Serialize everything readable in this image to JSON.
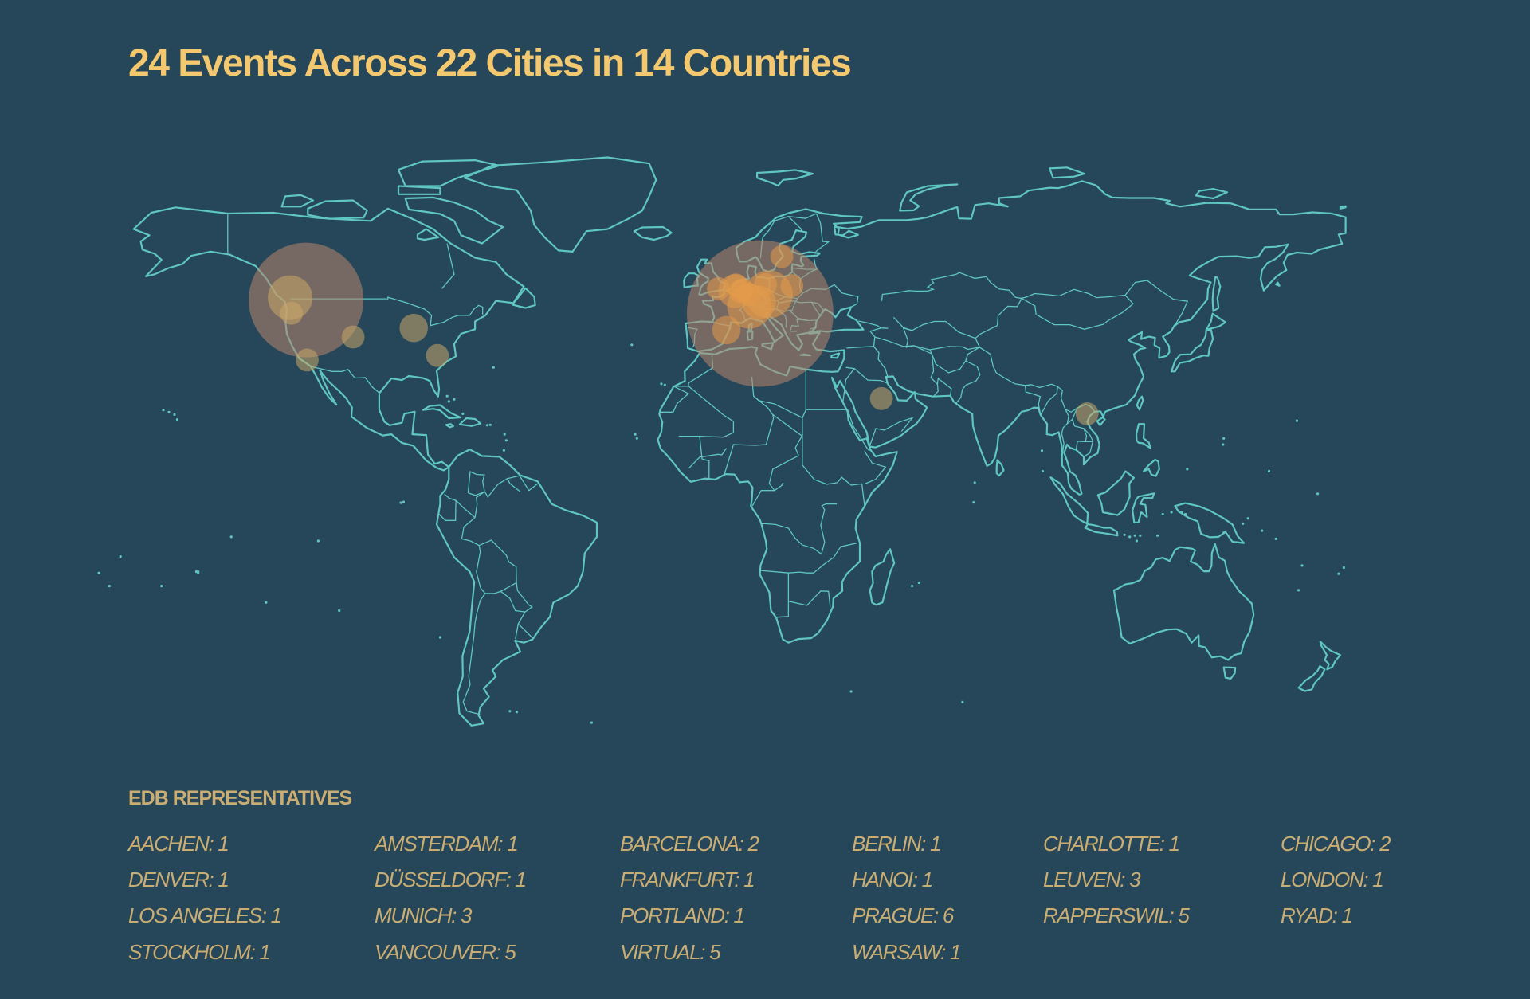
{
  "title": "24 Events Across 22 Cities in 14 Countries",
  "colors": {
    "background": "#264659",
    "land": "#5fc6c0",
    "title": "#f3c86e",
    "text": "#c9ad73",
    "bubble_large": "#b8856a",
    "bubble_small": "#c9a86a",
    "bubble_hot": "#e39a4a"
  },
  "legend": {
    "heading": "EDB REPRESENTATIVES",
    "items": [
      {
        "city": "AACHEN",
        "count": 1,
        "label": "AACHEN: 1"
      },
      {
        "city": "AMSTERDAM",
        "count": 1,
        "label": "AMSTERDAM: 1"
      },
      {
        "city": "BARCELONA",
        "count": 2,
        "label": "BARCELONA: 2"
      },
      {
        "city": "BERLIN",
        "count": 1,
        "label": "BERLIN: 1"
      },
      {
        "city": "CHARLOTTE",
        "count": 1,
        "label": "CHARLOTTE: 1"
      },
      {
        "city": "CHICAGO",
        "count": 2,
        "label": "CHICAGO: 2"
      },
      {
        "city": "DENVER",
        "count": 1,
        "label": "DENVER: 1"
      },
      {
        "city": "DÜSSELDORF",
        "count": 1,
        "label": "DÜSSELDORF: 1"
      },
      {
        "city": "FRANKFURT",
        "count": 1,
        "label": "FRANKFURT: 1"
      },
      {
        "city": "HANOI",
        "count": 1,
        "label": "HANOI: 1"
      },
      {
        "city": "LEUVEN",
        "count": 3,
        "label": "LEUVEN: 3"
      },
      {
        "city": "LONDON",
        "count": 1,
        "label": "LONDON: 1"
      },
      {
        "city": "LOS ANGELES",
        "count": 1,
        "label": "LOS ANGELES: 1"
      },
      {
        "city": "MUNICH",
        "count": 3,
        "label": "MUNICH: 3"
      },
      {
        "city": "PORTLAND",
        "count": 1,
        "label": "PORTLAND: 1"
      },
      {
        "city": "PRAGUE",
        "count": 6,
        "label": "PRAGUE: 6"
      },
      {
        "city": "RAPPERSWIL",
        "count": 5,
        "label": "RAPPERSWIL: 5"
      },
      {
        "city": "RYAD",
        "count": 1,
        "label": "RYAD: 1"
      },
      {
        "city": "STOCKHOLM",
        "count": 1,
        "label": "STOCKHOLM: 1"
      },
      {
        "city": "VANCOUVER",
        "count": 5,
        "label": "VANCOUVER: 5"
      },
      {
        "city": "VIRTUAL",
        "count": 5,
        "label": "VIRTUAL: 5"
      },
      {
        "city": "WARSAW",
        "count": 1,
        "label": "WARSAW: 1"
      }
    ]
  },
  "markers": [
    {
      "name": "Vancouver",
      "lat": 49.3,
      "lon": -123.1,
      "count": 5
    },
    {
      "name": "Portland",
      "lat": 45.5,
      "lon": -122.7,
      "count": 1
    },
    {
      "name": "Los Angeles",
      "lat": 34.1,
      "lon": -118.2,
      "count": 1
    },
    {
      "name": "Denver",
      "lat": 39.7,
      "lon": -105.0,
      "count": 1
    },
    {
      "name": "Chicago",
      "lat": 41.9,
      "lon": -87.6,
      "count": 2
    },
    {
      "name": "Charlotte",
      "lat": 35.2,
      "lon": -80.8,
      "count": 1
    },
    {
      "name": "London",
      "lat": 51.5,
      "lon": -0.1,
      "count": 1
    },
    {
      "name": "Amsterdam",
      "lat": 52.4,
      "lon": 4.9,
      "count": 1
    },
    {
      "name": "Leuven",
      "lat": 50.9,
      "lon": 4.7,
      "count": 3
    },
    {
      "name": "Aachen",
      "lat": 50.8,
      "lon": 6.1,
      "count": 1
    },
    {
      "name": "Düsseldorf",
      "lat": 51.2,
      "lon": 6.8,
      "count": 1
    },
    {
      "name": "Frankfurt",
      "lat": 50.1,
      "lon": 8.7,
      "count": 1
    },
    {
      "name": "Rapperswil",
      "lat": 47.2,
      "lon": 8.8,
      "count": 5
    },
    {
      "name": "Munich",
      "lat": 48.1,
      "lon": 11.6,
      "count": 3
    },
    {
      "name": "Prague",
      "lat": 50.1,
      "lon": 14.4,
      "count": 6
    },
    {
      "name": "Berlin",
      "lat": 52.5,
      "lon": 13.4,
      "count": 1
    },
    {
      "name": "Warsaw",
      "lat": 52.2,
      "lon": 21.0,
      "count": 1
    },
    {
      "name": "Stockholm",
      "lat": 59.3,
      "lon": 18.1,
      "count": 1
    },
    {
      "name": "Barcelona",
      "lat": 41.4,
      "lon": 2.2,
      "count": 2
    },
    {
      "name": "Ryad",
      "lat": 24.7,
      "lon": 46.7,
      "count": 1
    },
    {
      "name": "Hanoi",
      "lat": 21.0,
      "lon": 105.8,
      "count": 1
    }
  ]
}
